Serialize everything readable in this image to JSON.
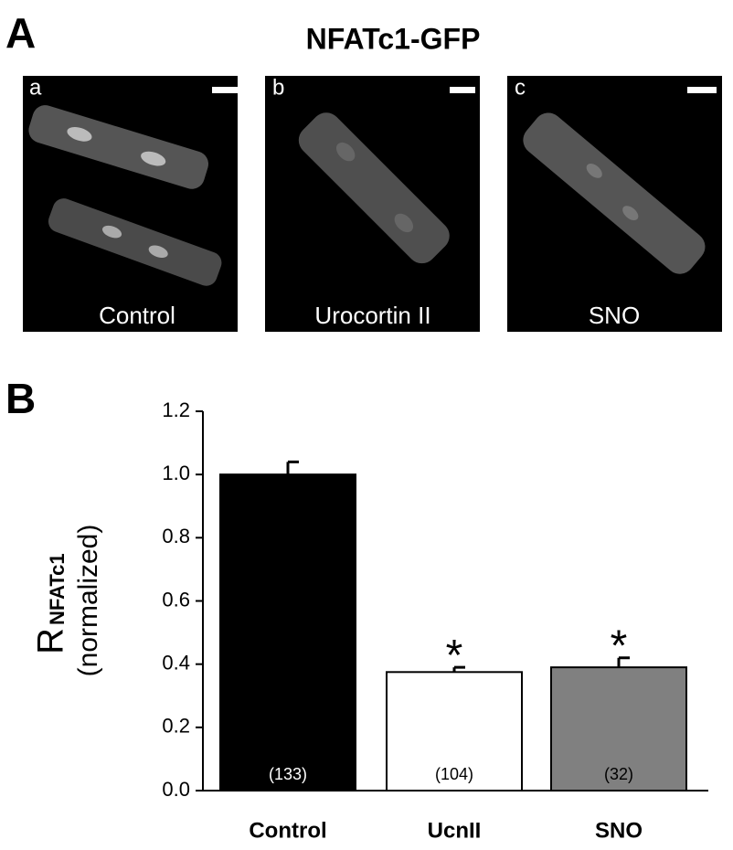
{
  "figure": {
    "panel_a": {
      "label": "A",
      "title": "NFATc1-GFP",
      "images": [
        {
          "letter": "a",
          "caption": "Control"
        },
        {
          "letter": "b",
          "caption": "Urocortin II"
        },
        {
          "letter": "c",
          "caption": "SNO"
        }
      ]
    },
    "panel_b_label": "B"
  },
  "chart_data": {
    "type": "bar",
    "ylabel": {
      "main": "R",
      "sub": "NFATc1",
      "unit": "(normalized)"
    },
    "categories": [
      "Control",
      "UcnII",
      "SNO"
    ],
    "values": [
      1.0,
      0.375,
      0.39
    ],
    "errors": [
      0.04,
      0.015,
      0.03
    ],
    "colors": [
      "#000000",
      "#ffffff",
      "#808080"
    ],
    "n_labels": [
      "(133)",
      "(104)",
      "(32)"
    ],
    "significance": [
      null,
      "*",
      "*"
    ],
    "ylim": [
      0,
      1.2
    ],
    "yticks": [
      {
        "value": 0,
        "label": "0.0"
      },
      {
        "value": 0.2,
        "label": "0.2"
      },
      {
        "value": 0.4,
        "label": "0.4"
      },
      {
        "value": 0.6,
        "label": "0.6"
      },
      {
        "value": 0.8,
        "label": "0.8"
      },
      {
        "value": 1.0,
        "label": "1.0"
      },
      {
        "value": 1.2,
        "label": "1.2"
      }
    ]
  }
}
